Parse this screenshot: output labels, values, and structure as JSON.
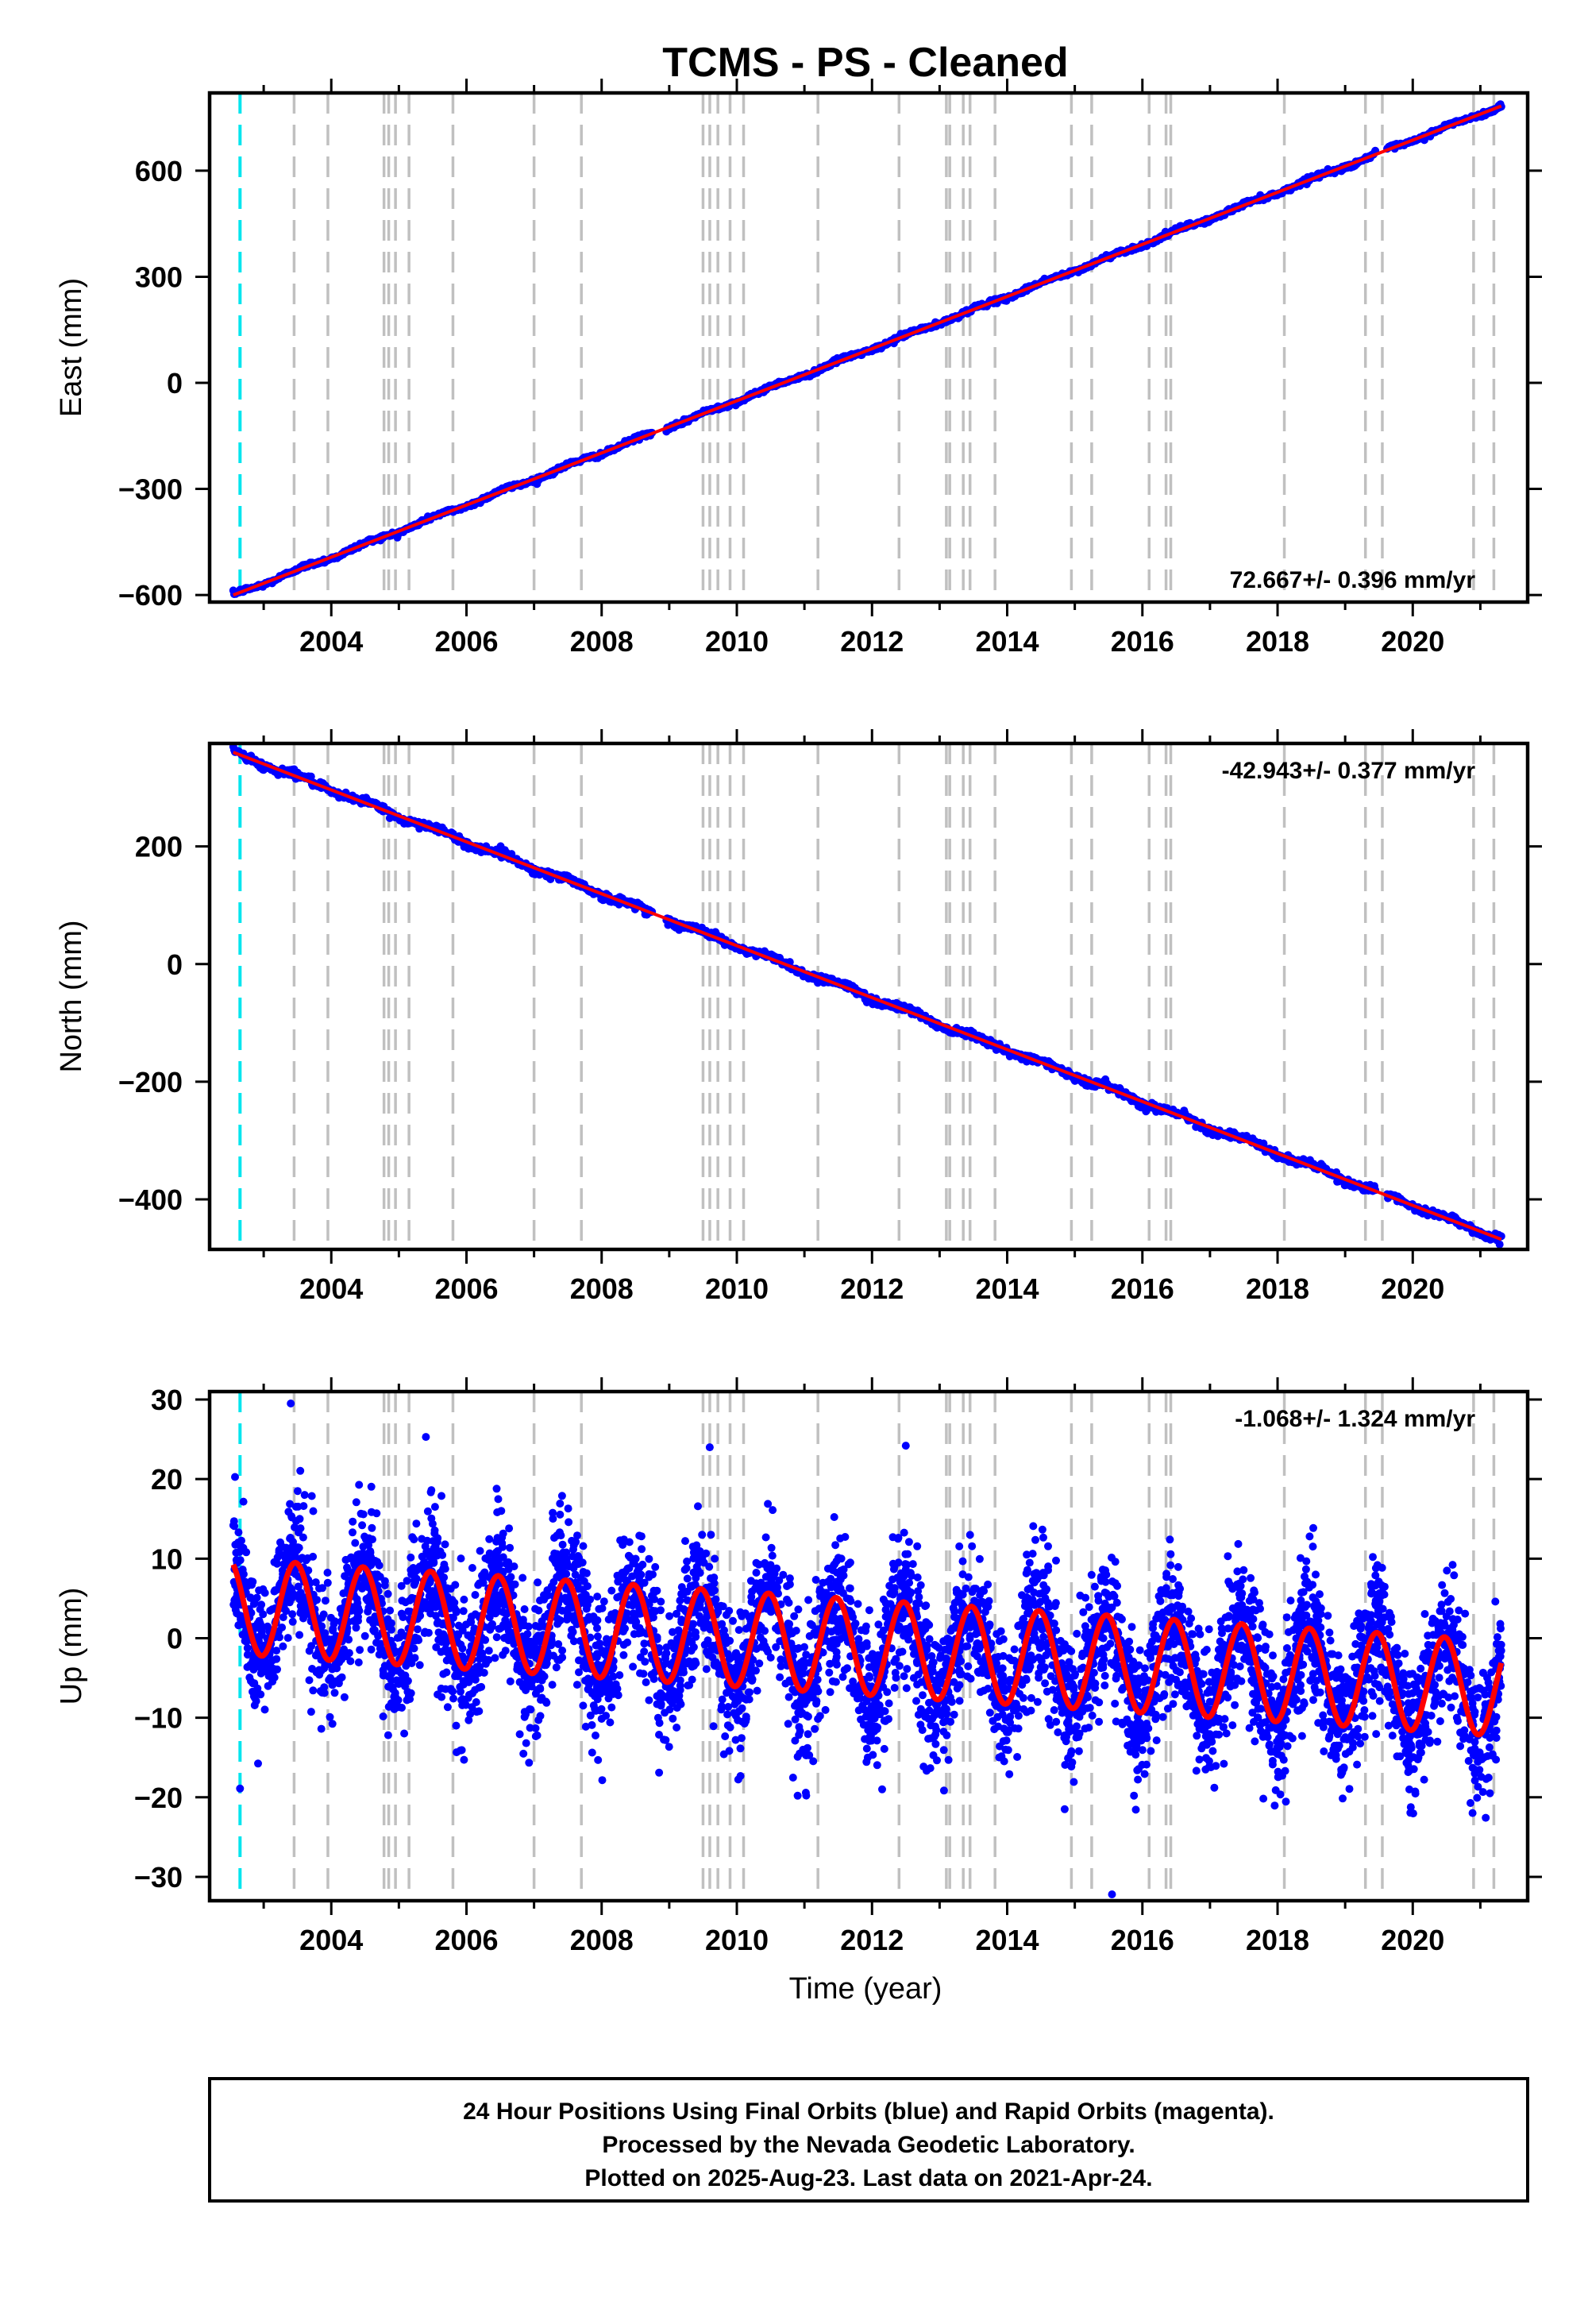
{
  "title": "TCMS  - PS - Cleaned",
  "xlabel": "Time (year)",
  "footer": [
    "24 Hour Positions Using Final Orbits (blue) and Rapid Orbits (magenta).",
    "Processed by the Nevada Geodetic Laboratory.",
    "Plotted on 2025-Aug-23. Last data on 2021-Apr-24."
  ],
  "colors": {
    "final_orbit_points": "#0000ff",
    "model_fit": "#ff0000",
    "equipment_change_line": "#00e5ee",
    "event_lines": "#c0c0c0",
    "frame": "#000000"
  },
  "chart_data": [
    {
      "type": "scatter",
      "component": "east",
      "ylabel": "East (mm)",
      "xlim": [
        2002.2,
        2021.7
      ],
      "ylim": [
        -620,
        820
      ],
      "xticks": [
        2004,
        2006,
        2008,
        2010,
        2012,
        2014,
        2016,
        2018,
        2020
      ],
      "yticks": [
        -600,
        -300,
        0,
        300,
        600
      ],
      "data_start": 2002.55,
      "data_end": 2021.31,
      "trend": {
        "start": [
          2002.55,
          -600
        ],
        "end": [
          2021.31,
          783
        ]
      },
      "velocity_label": "72.667+/- 0.396 mm/yr",
      "velocity_position": "bottom-right",
      "series": [
        {
          "role": "points",
          "points": [
            [
              2002.55,
              -600
            ],
            [
              2004,
              -488
            ],
            [
              2006,
              -356
            ],
            [
              2008,
              -206
            ],
            [
              2010,
              -74
            ],
            [
              2012,
              95
            ],
            [
              2014,
              238
            ],
            [
              2016,
              390
            ],
            [
              2018,
              553
            ],
            [
              2020,
              703
            ],
            [
              2021.31,
              783
            ]
          ]
        },
        {
          "role": "model",
          "points": [
            [
              2002.55,
              -600
            ],
            [
              2021.31,
              783
            ]
          ]
        }
      ]
    },
    {
      "type": "scatter",
      "component": "north",
      "ylabel": "North (mm)",
      "xlim": [
        2002.2,
        2021.7
      ],
      "ylim": [
        -485,
        375
      ],
      "xticks": [
        2004,
        2006,
        2008,
        2010,
        2012,
        2014,
        2016,
        2018,
        2020
      ],
      "yticks": [
        -400,
        -200,
        0,
        200
      ],
      "data_start": 2002.55,
      "data_end": 2021.31,
      "trend": {
        "start": [
          2002.55,
          360
        ],
        "end": [
          2021.31,
          -468
        ]
      },
      "velocity_label": "-42.943+/- 0.377 mm/yr",
      "velocity_position": "top-right",
      "series": [
        {
          "role": "points",
          "points": [
            [
              2002.55,
              360
            ],
            [
              2004,
              298
            ],
            [
              2006,
              214
            ],
            [
              2008,
              122
            ],
            [
              2010,
              36
            ],
            [
              2012,
              -46
            ],
            [
              2014,
              -128
            ],
            [
              2016,
              -222
            ],
            [
              2018,
              -322
            ],
            [
              2020,
              -408
            ],
            [
              2021.31,
              -468
            ]
          ]
        },
        {
          "role": "model",
          "points": [
            [
              2002.55,
              360
            ],
            [
              2021.31,
              -468
            ]
          ]
        }
      ]
    },
    {
      "type": "scatter",
      "component": "up",
      "ylabel": "Up (mm)",
      "xlim": [
        2002.2,
        2021.7
      ],
      "ylim": [
        -33,
        31
      ],
      "xticks": [
        2004,
        2006,
        2008,
        2010,
        2012,
        2014,
        2016,
        2018,
        2020
      ],
      "yticks": [
        -30,
        -20,
        -10,
        0,
        10,
        20,
        30
      ],
      "data_start": 2002.55,
      "data_end": 2021.31,
      "velocity_label": "-1.068+/- 1.324 mm/yr",
      "velocity_position": "top-right",
      "seasonal_model": {
        "offset_start": 4.0,
        "slope_per_year": -0.55,
        "amplitude": 6.0,
        "peak_phase": 0.47
      },
      "scatter_std": 4.3,
      "outliers": [
        [
          2003.4,
          29.5
        ],
        [
          2005.4,
          25.3
        ],
        [
          2009.6,
          24.0
        ],
        [
          2012.5,
          24.2
        ],
        [
          2015.55,
          -32.2
        ],
        [
          2014.85,
          -21.5
        ],
        [
          2010.9,
          -19.8
        ],
        [
          2002.65,
          -18.9
        ],
        [
          2012.15,
          -19.0
        ]
      ]
    }
  ],
  "event_lines": {
    "equipment_change": [
      2002.65
    ],
    "earthquake": [
      2003.45,
      2003.95,
      2004.78,
      2004.85,
      2004.95,
      2005.15,
      2005.8,
      2007.0,
      2007.7,
      2009.5,
      2009.6,
      2009.72,
      2009.9,
      2010.1,
      2011.2,
      2012.4,
      2013.1,
      2013.15,
      2013.35,
      2013.45,
      2013.82,
      2014.95,
      2015.25,
      2016.1,
      2016.35,
      2016.42,
      2018.1,
      2019.3,
      2019.55,
      2020.9,
      2021.2
    ]
  }
}
